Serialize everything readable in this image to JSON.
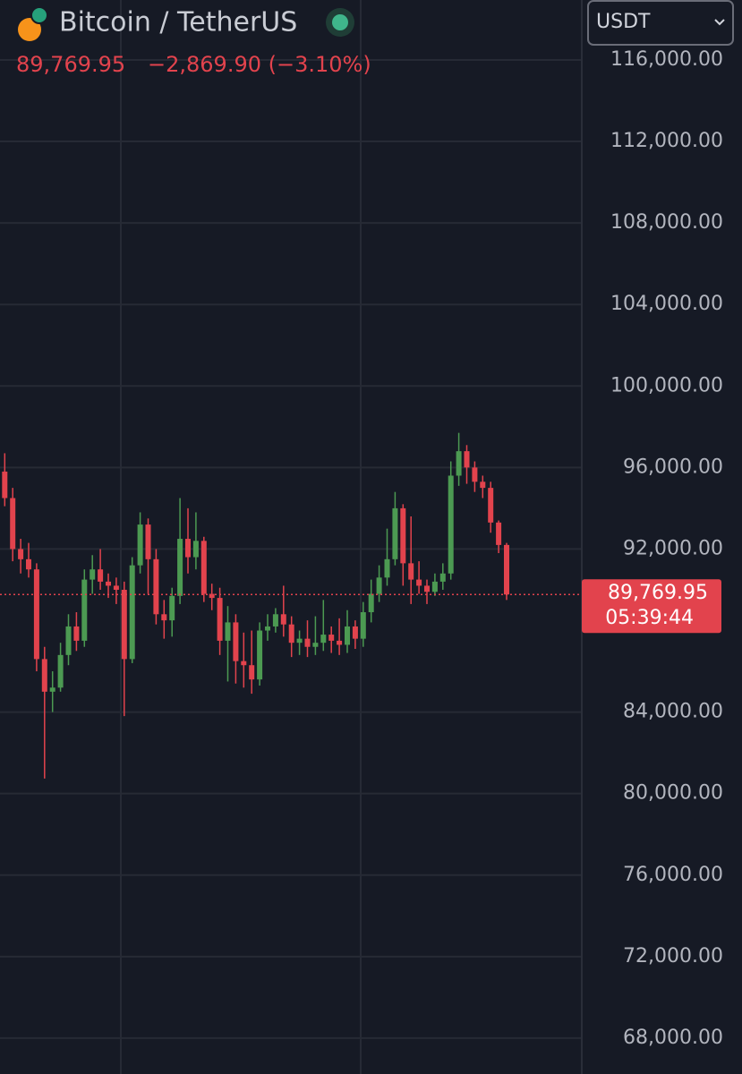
{
  "chart_data": {
    "type": "candlestick",
    "title": "Bitcoin / TetherUS",
    "price_change": "−2,869.90 (−3.10%)",
    "currency": "USDT",
    "countdown": "05:39:44",
    "last_price": {
      "value": 89769.95,
      "label": "89,769.95"
    },
    "up_color": "#4c9a52",
    "down_color": "#e2434d",
    "ylim": [
      66240,
      118940
    ],
    "yticks": [
      {
        "value": 68000,
        "label": "68,000.00"
      },
      {
        "value": 72000,
        "label": "72,000.00"
      },
      {
        "value": 76000,
        "label": "76,000.00"
      },
      {
        "value": 80000,
        "label": "80,000.00"
      },
      {
        "value": 84000,
        "label": "84,000.00"
      },
      {
        "value": 92000,
        "label": "92,000.00"
      },
      {
        "value": 96000,
        "label": "96,000.00"
      },
      {
        "value": 100000,
        "label": "100,000.00"
      },
      {
        "value": 104000,
        "label": "104,000.00"
      },
      {
        "value": 108000,
        "label": "108,000.00"
      },
      {
        "value": 112000,
        "label": "112,000.00"
      },
      {
        "value": 116000,
        "label": "116,000.00"
      }
    ],
    "grid": true,
    "open": [
      95800,
      94500,
      92000,
      91500,
      91000,
      86600,
      85000,
      85200,
      86800,
      88200,
      87500,
      90500,
      91000,
      90400,
      90200,
      90000,
      86600,
      91200,
      93200,
      91500,
      88800,
      88500,
      89700,
      92500,
      91600,
      92400,
      89800,
      89600,
      87500,
      88400,
      86500,
      86300,
      85600,
      88000,
      88200,
      88800,
      88300,
      87400,
      87600,
      87200,
      87400,
      87800,
      87500,
      87300,
      88200,
      87600,
      88900,
      89800,
      90600,
      91500,
      94000,
      91300,
      90500,
      90200,
      89900,
      90400,
      90800,
      95600,
      96800,
      96000,
      95300,
      95000,
      93300,
      92200
    ],
    "high": [
      96700,
      95000,
      92500,
      92300,
      91300,
      87200,
      86000,
      87400,
      88800,
      88900,
      91000,
      91700,
      92000,
      90800,
      90600,
      90400,
      91600,
      93800,
      93500,
      92000,
      89500,
      90100,
      94500,
      94000,
      93800,
      92600,
      90300,
      90100,
      89200,
      88800,
      87900,
      88000,
      88400,
      88800,
      89100,
      90200,
      88700,
      88000,
      88500,
      88700,
      89500,
      88200,
      88600,
      89000,
      88500,
      89400,
      90500,
      91200,
      93000,
      94800,
      94200,
      93600,
      91400,
      90500,
      90800,
      91300,
      96300,
      97700,
      97100,
      96300,
      95600,
      95300,
      93400,
      92300
    ],
    "low": [
      94100,
      91400,
      90800,
      90600,
      86000,
      80740,
      84000,
      85000,
      86300,
      87000,
      87200,
      89800,
      90000,
      89600,
      89300,
      83800,
      86400,
      90800,
      89800,
      88300,
      87600,
      87700,
      89300,
      90800,
      91000,
      89400,
      89000,
      86800,
      85500,
      85400,
      85200,
      84900,
      85300,
      87500,
      87900,
      87700,
      86700,
      86800,
      86700,
      86800,
      87000,
      86900,
      86800,
      86900,
      87100,
      87200,
      88400,
      89400,
      90200,
      91200,
      90200,
      89300,
      89800,
      89300,
      89700,
      90000,
      90500,
      95100,
      95200,
      94800,
      94500,
      92800,
      91800,
      89500
    ],
    "close": [
      94500,
      92000,
      91500,
      91000,
      86600,
      85000,
      85200,
      86800,
      88200,
      87500,
      90500,
      91000,
      90400,
      90200,
      90000,
      86600,
      91200,
      93200,
      91500,
      88800,
      88500,
      89700,
      92500,
      91600,
      92400,
      89800,
      89600,
      87500,
      88400,
      86500,
      86300,
      85600,
      88000,
      88200,
      88800,
      88300,
      87400,
      87600,
      87200,
      87400,
      87800,
      87500,
      87300,
      88200,
      87600,
      88900,
      89800,
      90600,
      91500,
      94000,
      91300,
      90500,
      90200,
      89900,
      90400,
      90800,
      95600,
      96800,
      96000,
      95300,
      95000,
      93300,
      92200,
      89769.95
    ]
  }
}
